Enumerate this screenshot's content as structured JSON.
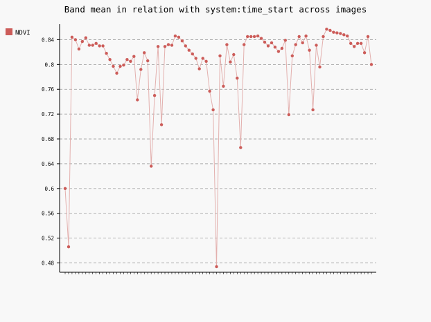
{
  "chart_data": {
    "type": "line",
    "title": "Band mean in relation with system:time_start across images",
    "xlabel": "",
    "ylabel": "",
    "ylim": [
      0.465,
      0.865
    ],
    "y_ticks": [
      0.48,
      0.52,
      0.56,
      0.6,
      0.64,
      0.68,
      0.72,
      0.76,
      0.8,
      0.84
    ],
    "grid": "horizontal dashed",
    "legend_position": "top-left",
    "series": [
      {
        "name": "NDVI",
        "color": "#cc5c59",
        "line_color": "#e3b0ae",
        "values": [
          0.6,
          0.506,
          0.844,
          0.84,
          0.825,
          0.837,
          0.843,
          0.831,
          0.831,
          0.834,
          0.83,
          0.83,
          0.818,
          0.808,
          0.797,
          0.786,
          0.797,
          0.799,
          0.808,
          0.805,
          0.813,
          0.743,
          0.792,
          0.819,
          0.806,
          0.636,
          0.75,
          0.829,
          0.703,
          0.829,
          0.832,
          0.831,
          0.846,
          0.844,
          0.838,
          0.83,
          0.823,
          0.817,
          0.81,
          0.793,
          0.81,
          0.805,
          0.757,
          0.727,
          0.474,
          0.814,
          0.765,
          0.832,
          0.804,
          0.816,
          0.778,
          0.666,
          0.832,
          0.845,
          0.845,
          0.845,
          0.846,
          0.842,
          0.836,
          0.83,
          0.835,
          0.828,
          0.821,
          0.826,
          0.839,
          0.719,
          0.814,
          0.832,
          0.845,
          0.835,
          0.846,
          0.823,
          0.727,
          0.831,
          0.796,
          0.845,
          0.857,
          0.855,
          0.852,
          0.851,
          0.85,
          0.848,
          0.846,
          0.834,
          0.829,
          0.834,
          0.834,
          0.819,
          0.845,
          0.8
        ]
      }
    ]
  }
}
